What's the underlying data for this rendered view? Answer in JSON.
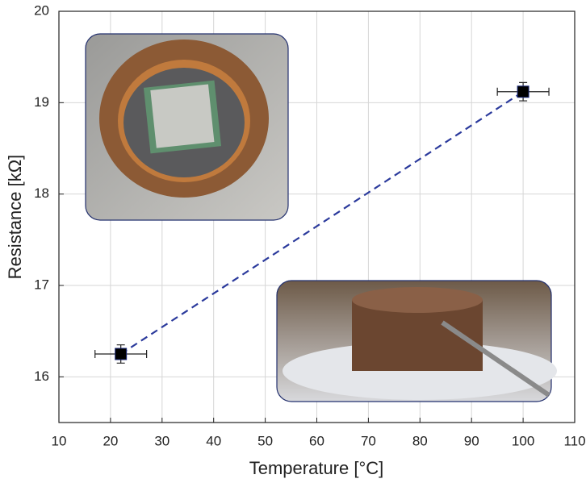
{
  "chart_data": {
    "type": "scatter",
    "x_label": "Temperature [°C]",
    "y_label": "Resistance [kΩ]",
    "x": [
      22,
      100
    ],
    "values": [
      16.25,
      19.12
    ],
    "x_err": [
      5,
      5
    ],
    "y_err": [
      0.1,
      0.1
    ],
    "color": "#000000",
    "line_color": "#2b3a9c",
    "line_style": "dashed",
    "xlim": [
      10,
      110
    ],
    "xticks": [
      10,
      20,
      30,
      40,
      50,
      60,
      70,
      80,
      90,
      100,
      110
    ],
    "ylim": [
      15.5,
      20
    ],
    "yticks": [
      16,
      17,
      18,
      19,
      20
    ],
    "grid": true
  }
}
